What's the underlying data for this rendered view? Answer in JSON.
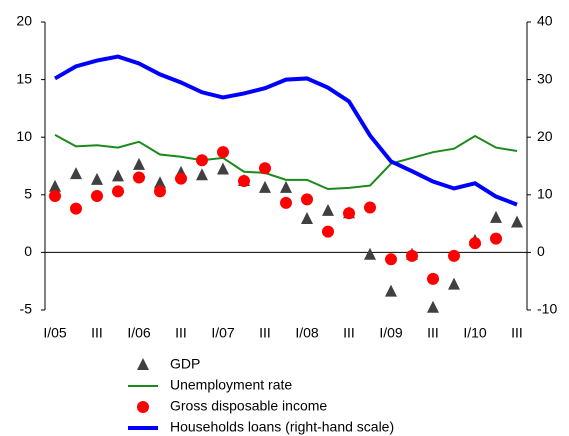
{
  "chart_data": {
    "type": "combo",
    "categories": [
      "I/05",
      null,
      "III",
      null,
      "I/06",
      null,
      "III",
      null,
      "I/07",
      null,
      "III",
      null,
      "I/08",
      null,
      "III",
      null,
      "I/09",
      null,
      "III",
      null,
      "I/10",
      null,
      "III"
    ],
    "ylim": [
      -5,
      20
    ],
    "yticks": [
      -5,
      0,
      5,
      10,
      15,
      20
    ],
    "y2lim": [
      -10,
      40
    ],
    "y2ticks": [
      -10,
      0,
      10,
      20,
      30,
      40
    ],
    "series": [
      {
        "name": "GDP",
        "type": "scatter",
        "marker": "triangle",
        "color": "#404040",
        "values": [
          5.7,
          6.8,
          6.3,
          6.6,
          7.6,
          6.0,
          6.9,
          6.7,
          7.2,
          6.2,
          5.6,
          5.6,
          2.9,
          3.6,
          3.4,
          -0.2,
          -3.4,
          -0.2,
          -4.8,
          -2.8,
          1.0,
          3.0,
          2.6
        ]
      },
      {
        "name": "Unemployment rate",
        "type": "line",
        "color": "#1a8a1a",
        "width": 2,
        "values": [
          10.2,
          9.2,
          9.3,
          9.1,
          9.6,
          8.5,
          8.3,
          8.0,
          8.2,
          7.0,
          6.9,
          6.3,
          6.3,
          5.5,
          5.6,
          5.8,
          7.7,
          8.2,
          8.7,
          9.0,
          10.1,
          9.1,
          8.8
        ]
      },
      {
        "name": "Gross disposable income",
        "type": "scatter",
        "marker": "circle",
        "color": "#ff0000",
        "values": [
          4.9,
          3.8,
          4.9,
          5.3,
          6.5,
          5.3,
          6.4,
          8.0,
          8.7,
          6.2,
          7.3,
          4.3,
          4.6,
          1.8,
          3.4,
          3.9,
          -0.6,
          -0.3,
          -2.3,
          -0.3,
          0.8,
          1.2,
          null
        ]
      },
      {
        "name": "Households loans (right-hand scale)",
        "type": "line",
        "color": "#0000ff",
        "width": 4,
        "axis": "y2",
        "values": [
          30.2,
          32.3,
          33.3,
          34.0,
          32.8,
          30.9,
          29.5,
          27.8,
          26.9,
          27.6,
          28.5,
          30.0,
          30.2,
          28.6,
          26.2,
          20.3,
          15.8,
          14.1,
          12.3,
          11.1,
          12.0,
          9.7,
          8.3
        ]
      }
    ]
  }
}
